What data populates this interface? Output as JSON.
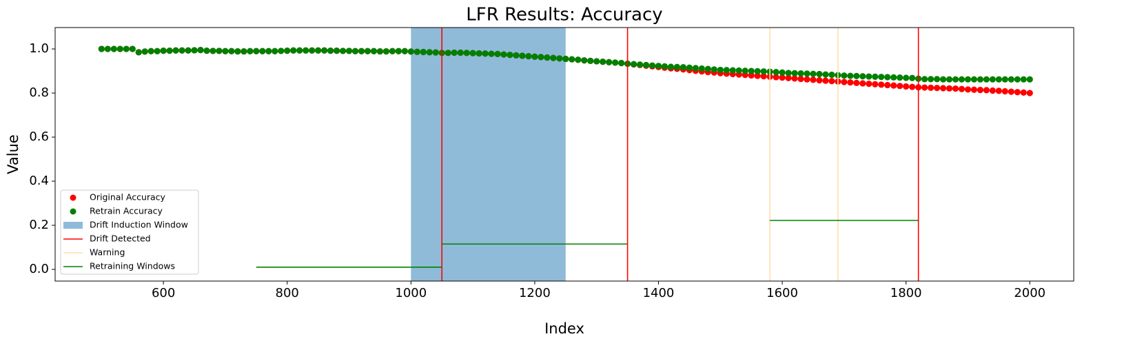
{
  "chart_data": {
    "type": "scatter",
    "title": "LFR Results: Accuracy",
    "x_label": "Index",
    "y_label": "Value",
    "xlim": [
      425,
      2071
    ],
    "ylim": [
      -0.053,
      1.097
    ],
    "xticks": [
      600,
      800,
      1000,
      1200,
      1400,
      1600,
      1800,
      2000
    ],
    "yticks": [
      {
        "value": 0,
        "label": "0.0"
      },
      0.2,
      0.4,
      0.6,
      0.8,
      {
        "value": 1,
        "label": "1.0"
      }
    ],
    "grid": false,
    "legend_location": "lower left",
    "x": [
      500,
      510,
      520,
      530,
      540,
      550,
      560,
      570,
      580,
      590,
      600,
      610,
      620,
      630,
      640,
      650,
      660,
      670,
      680,
      690,
      700,
      710,
      720,
      730,
      740,
      750,
      760,
      770,
      780,
      790,
      800,
      810,
      820,
      830,
      840,
      850,
      860,
      870,
      880,
      890,
      900,
      910,
      920,
      930,
      940,
      950,
      960,
      970,
      980,
      990,
      1000,
      1010,
      1020,
      1030,
      1040,
      1050,
      1060,
      1070,
      1080,
      1090,
      1100,
      1110,
      1120,
      1130,
      1140,
      1150,
      1160,
      1170,
      1180,
      1190,
      1200,
      1210,
      1220,
      1230,
      1240,
      1250,
      1260,
      1270,
      1280,
      1290,
      1300,
      1310,
      1320,
      1330,
      1340,
      1350,
      1360,
      1370,
      1380,
      1390,
      1400,
      1410,
      1420,
      1430,
      1440,
      1450,
      1460,
      1470,
      1480,
      1490,
      1500,
      1510,
      1520,
      1530,
      1540,
      1550,
      1560,
      1570,
      1580,
      1590,
      1600,
      1610,
      1620,
      1630,
      1640,
      1650,
      1660,
      1670,
      1680,
      1690,
      1700,
      1710,
      1720,
      1730,
      1740,
      1750,
      1760,
      1770,
      1780,
      1790,
      1800,
      1810,
      1820,
      1830,
      1840,
      1850,
      1860,
      1870,
      1880,
      1890,
      1900,
      1910,
      1920,
      1930,
      1940,
      1950,
      1960,
      1970,
      1980,
      1990,
      2000
    ],
    "series": [
      {
        "name": "Original Accuracy",
        "color": "#ff0000",
        "values": [
          1,
          1,
          1,
          1,
          1,
          1,
          0.985,
          0.988,
          0.99,
          0.99,
          0.992,
          0.992,
          0.993,
          0.993,
          0.993,
          0.994,
          0.995,
          0.992,
          0.991,
          0.991,
          0.99,
          0.99,
          0.989,
          0.989,
          0.99,
          0.99,
          0.99,
          0.99,
          0.99,
          0.991,
          0.992,
          0.993,
          0.993,
          0.993,
          0.993,
          0.993,
          0.993,
          0.992,
          0.992,
          0.991,
          0.991,
          0.99,
          0.99,
          0.99,
          0.99,
          0.989,
          0.989,
          0.99,
          0.99,
          0.99,
          0.988,
          0.987,
          0.986,
          0.985,
          0.984,
          0.982,
          0.982,
          0.983,
          0.983,
          0.982,
          0.981,
          0.98,
          0.979,
          0.978,
          0.977,
          0.975,
          0.973,
          0.971,
          0.969,
          0.967,
          0.965,
          0.963,
          0.961,
          0.959,
          0.957,
          0.955,
          0.953,
          0.951,
          0.948,
          0.946,
          0.944,
          0.942,
          0.94,
          0.938,
          0.936,
          0.933,
          0.93,
          0.927,
          0.924,
          0.921,
          0.918,
          0.915,
          0.912,
          0.91,
          0.907,
          0.904,
          0.901,
          0.898,
          0.895,
          0.893,
          0.89,
          0.888,
          0.886,
          0.884,
          0.882,
          0.88,
          0.878,
          0.876,
          0.874,
          0.872,
          0.87,
          0.868,
          0.866,
          0.864,
          0.862,
          0.86,
          0.858,
          0.856,
          0.854,
          0.852,
          0.85,
          0.848,
          0.846,
          0.844,
          0.842,
          0.84,
          0.838,
          0.836,
          0.834,
          0.832,
          0.83,
          0.828,
          0.826,
          0.825,
          0.824,
          0.823,
          0.822,
          0.821,
          0.82,
          0.818,
          0.816,
          0.815,
          0.814,
          0.813,
          0.811,
          0.81,
          0.808,
          0.806,
          0.804,
          0.802,
          0.8
        ]
      },
      {
        "name": "Retrain Accuracy",
        "color": "#008000",
        "values": [
          1,
          1,
          1,
          1,
          1,
          1,
          0.985,
          0.988,
          0.99,
          0.99,
          0.992,
          0.992,
          0.993,
          0.993,
          0.993,
          0.994,
          0.995,
          0.992,
          0.991,
          0.991,
          0.99,
          0.99,
          0.989,
          0.989,
          0.99,
          0.99,
          0.99,
          0.99,
          0.99,
          0.991,
          0.992,
          0.993,
          0.993,
          0.993,
          0.993,
          0.993,
          0.993,
          0.992,
          0.992,
          0.991,
          0.991,
          0.99,
          0.99,
          0.99,
          0.99,
          0.989,
          0.989,
          0.99,
          0.99,
          0.99,
          0.988,
          0.987,
          0.986,
          0.985,
          0.984,
          0.982,
          0.982,
          0.983,
          0.983,
          0.982,
          0.981,
          0.98,
          0.979,
          0.978,
          0.977,
          0.975,
          0.973,
          0.971,
          0.969,
          0.967,
          0.965,
          0.963,
          0.961,
          0.959,
          0.957,
          0.955,
          0.953,
          0.951,
          0.948,
          0.946,
          0.944,
          0.942,
          0.94,
          0.938,
          0.936,
          0.933,
          0.931,
          0.929,
          0.927,
          0.925,
          0.923,
          0.921,
          0.919,
          0.918,
          0.917,
          0.915,
          0.913,
          0.911,
          0.909,
          0.907,
          0.905,
          0.904,
          0.903,
          0.902,
          0.901,
          0.9,
          0.899,
          0.898,
          0.897,
          0.895,
          0.893,
          0.891,
          0.89,
          0.889,
          0.888,
          0.887,
          0.886,
          0.884,
          0.883,
          0.881,
          0.879,
          0.878,
          0.877,
          0.876,
          0.875,
          0.874,
          0.873,
          0.872,
          0.871,
          0.87,
          0.869,
          0.868,
          0.865,
          0.863,
          0.863,
          0.863,
          0.862,
          0.862,
          0.862,
          0.862,
          0.862,
          0.862,
          0.862,
          0.862,
          0.862,
          0.862,
          0.862,
          0.862,
          0.862,
          0.862,
          0.862
        ]
      }
    ],
    "span": {
      "name": "Drift Induction Window",
      "color": "#1f77b4",
      "opacity": 0.5,
      "start": 1000,
      "end": 1250
    },
    "drift_detected": {
      "name": "Drift Detected",
      "color": "#ff0000",
      "x": [
        1050,
        1350,
        1820
      ]
    },
    "warning": {
      "name": "Warning",
      "color": "#ffdead",
      "x": [
        1580,
        1690
      ]
    },
    "retraining_windows": {
      "name": "Retraining Windows",
      "color": "#008000",
      "segments": [
        {
          "start": 750,
          "end": 1050,
          "y": 0.01
        },
        {
          "start": 1050,
          "end": 1350,
          "y": 0.115
        },
        {
          "start": 1580,
          "end": 1820,
          "y": 0.222
        }
      ]
    }
  }
}
